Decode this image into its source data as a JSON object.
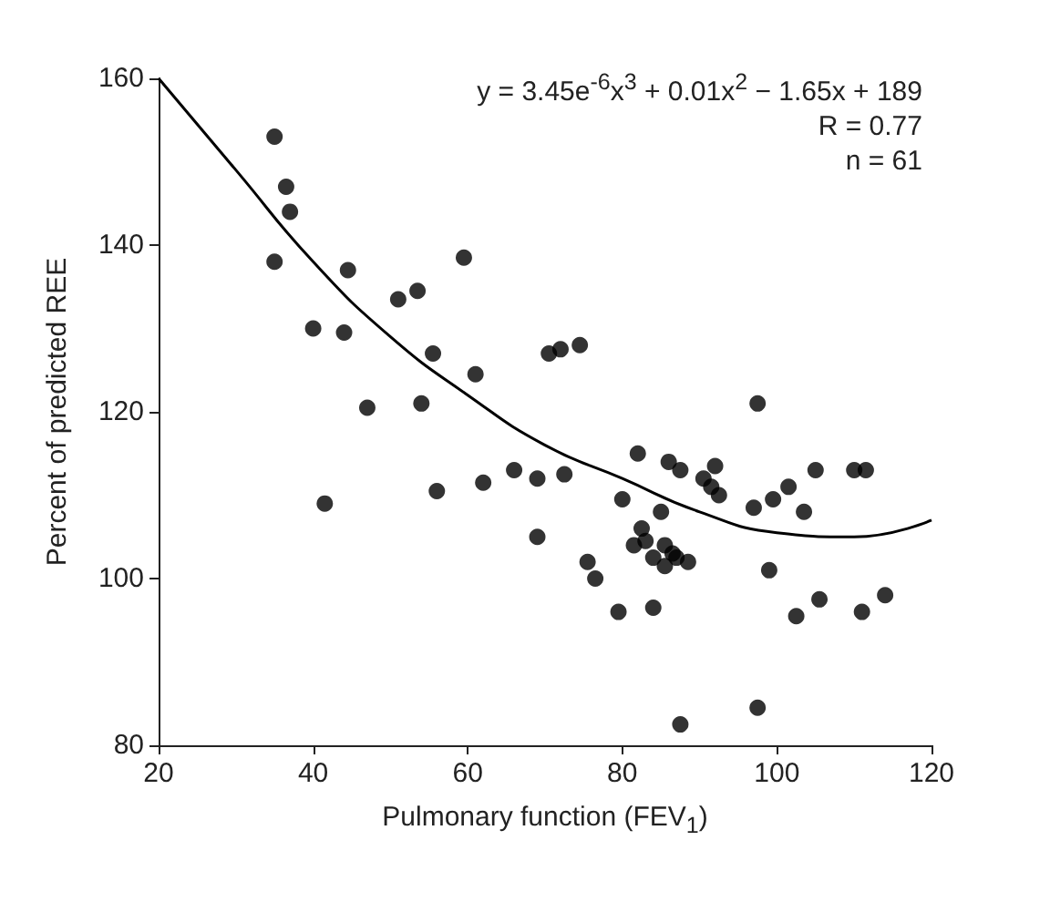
{
  "chart_data": {
    "type": "scatter",
    "xlabel": "Pulmonary function (FEV$_{1}$)",
    "ylabel": "Percent of predicted REE",
    "annotations": [
      "y = 3.45e$^{-6}$x$^{3}$ + 0.01x$^{2}$ − 1.65x + 189",
      "R = 0.77",
      "n = 61"
    ],
    "xlim": [
      20,
      120
    ],
    "xticks": [
      20,
      40,
      60,
      80,
      100,
      120
    ],
    "ylim": [
      80,
      160
    ],
    "yticks": [
      80,
      100,
      120,
      140,
      160
    ],
    "grid": false,
    "marker": "circle",
    "series": [
      {
        "color": "#000000",
        "x": [
          35,
          36.5,
          37,
          35,
          40,
          41.5,
          44.5,
          44,
          47,
          51,
          53.5,
          54,
          55.5,
          56,
          59.5,
          61,
          62,
          66,
          69,
          69,
          70.5,
          72,
          72.5,
          74.5,
          75.5,
          76.5,
          79.5,
          80,
          81.5,
          82,
          82.5,
          83,
          84,
          84,
          85,
          85.5,
          85.5,
          86,
          86.5,
          87,
          87.5,
          87.5,
          88.5,
          90.5,
          91.5,
          92,
          92.5,
          97,
          97.5,
          97.5,
          99,
          99.5,
          101.5,
          102.5,
          103.5,
          105,
          105.5,
          110,
          111,
          111.5,
          114
        ],
        "values": [
          153,
          147,
          144,
          138,
          130,
          109,
          137,
          129.5,
          120.5,
          133.5,
          134.5,
          121,
          127,
          110.5,
          138.5,
          124.5,
          111.5,
          113,
          105,
          112,
          127,
          127.5,
          112.5,
          128,
          102,
          100,
          96,
          109.5,
          104,
          115,
          106,
          104.5,
          96.5,
          102.5,
          108,
          101.5,
          104,
          114,
          103,
          102.5,
          113,
          82.5,
          102,
          112,
          111,
          113.5,
          110,
          108.5,
          121,
          84.5,
          101,
          109.5,
          111,
          95.5,
          108,
          113,
          97.5,
          113,
          96,
          113,
          98
        ]
      },
      {
        "type": "line",
        "color": "#000000",
        "marker": "none",
        "line_style": "solid",
        "x": [
          20,
          30,
          40,
          50,
          60,
          70,
          80,
          90,
          100,
          110,
          120
        ],
        "values": [
          160,
          149,
          138,
          129,
          122,
          116,
          112,
          108,
          105.5,
          105,
          107
        ]
      }
    ]
  }
}
